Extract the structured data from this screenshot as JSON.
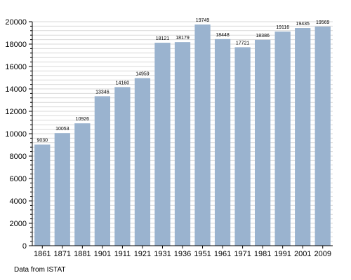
{
  "chart_data": {
    "type": "bar",
    "categories": [
      "1861",
      "1871",
      "1881",
      "1901",
      "1911",
      "1921",
      "1931",
      "1936",
      "1951",
      "1961",
      "1971",
      "1981",
      "1991",
      "2001",
      "2009"
    ],
    "values": [
      9030,
      10053,
      10926,
      13346,
      14160,
      14959,
      18121,
      18179,
      19749,
      18448,
      17721,
      18386,
      19116,
      19435,
      19569
    ],
    "ylim": [
      0,
      20000
    ],
    "yticks": [
      0,
      2000,
      4000,
      6000,
      8000,
      10000,
      12000,
      14000,
      16000,
      18000,
      20000
    ],
    "minor_tick_step": 400,
    "grid": true,
    "bar_color": "#9ab3cf",
    "grid_color": "#d9d9d9",
    "data_labels": true
  },
  "footer": {
    "source": "Data from ISTAT"
  }
}
